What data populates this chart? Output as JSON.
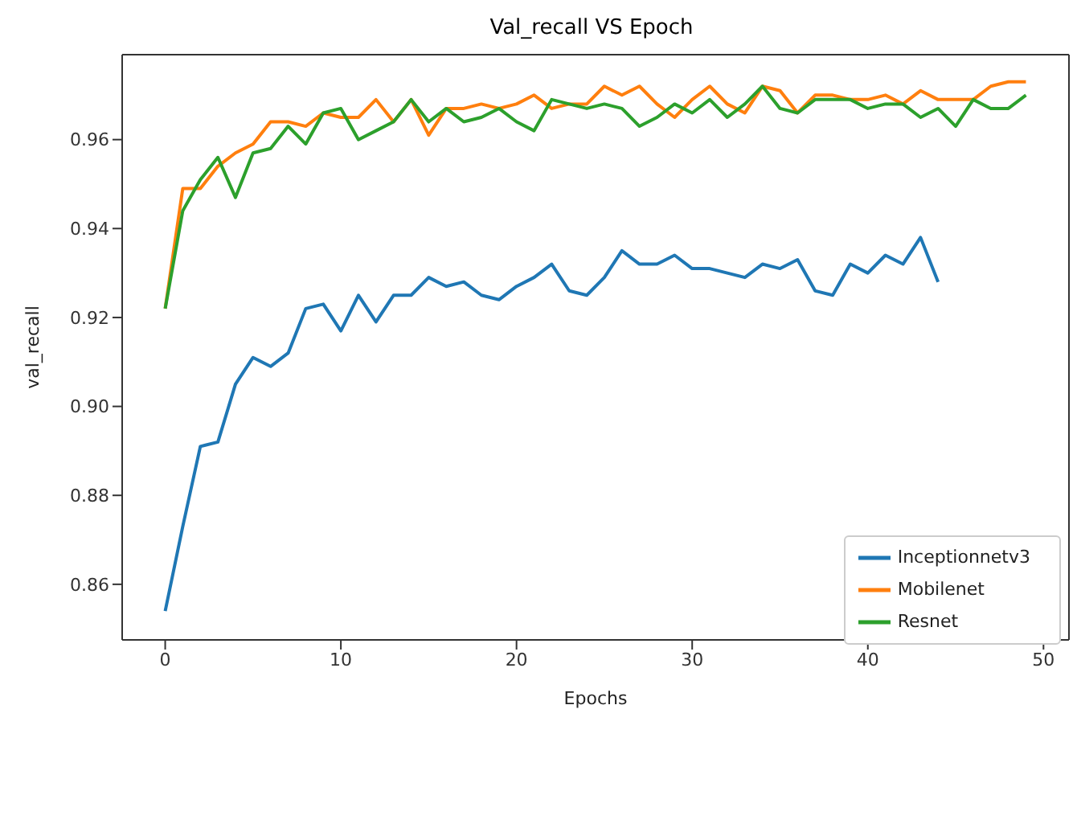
{
  "chart_data": {
    "type": "line",
    "title": "Val_recall VS Epoch",
    "xlabel": "Epochs",
    "ylabel": "val_recall",
    "x": [
      0,
      1,
      2,
      3,
      4,
      5,
      6,
      7,
      8,
      9,
      10,
      11,
      12,
      13,
      14,
      15,
      16,
      17,
      18,
      19,
      20,
      21,
      22,
      23,
      24,
      25,
      26,
      27,
      28,
      29,
      30,
      31,
      32,
      33,
      34,
      35,
      36,
      37,
      38,
      39,
      40,
      41,
      42,
      43,
      44,
      45,
      46,
      47,
      48,
      49
    ],
    "series": [
      {
        "name": "Inceptionnetv3",
        "color": "#1f77b4",
        "x": [
          0,
          1,
          2,
          3,
          4,
          5,
          6,
          7,
          8,
          9,
          10,
          11,
          12,
          13,
          14,
          15,
          16,
          17,
          18,
          19,
          20,
          21,
          22,
          23,
          24,
          25,
          26,
          27,
          28,
          29,
          30,
          31,
          32,
          33,
          34,
          35,
          36,
          37,
          38,
          39,
          40,
          41,
          42,
          43,
          44
        ],
        "values": [
          0.854,
          0.873,
          0.891,
          0.892,
          0.905,
          0.911,
          0.909,
          0.912,
          0.922,
          0.923,
          0.917,
          0.925,
          0.919,
          0.925,
          0.925,
          0.929,
          0.927,
          0.928,
          0.925,
          0.924,
          0.927,
          0.929,
          0.932,
          0.926,
          0.925,
          0.929,
          0.935,
          0.932,
          0.932,
          0.934,
          0.931,
          0.931,
          0.93,
          0.929,
          0.932,
          0.931,
          0.933,
          0.926,
          0.925,
          0.932,
          0.93,
          0.934,
          0.932,
          0.938,
          0.928
        ]
      },
      {
        "name": "Mobilenet",
        "color": "#ff7f0e",
        "values": [
          0.922,
          0.949,
          0.949,
          0.954,
          0.957,
          0.959,
          0.964,
          0.964,
          0.963,
          0.966,
          0.965,
          0.965,
          0.969,
          0.964,
          0.969,
          0.961,
          0.967,
          0.967,
          0.968,
          0.967,
          0.968,
          0.97,
          0.967,
          0.968,
          0.968,
          0.972,
          0.97,
          0.972,
          0.968,
          0.965,
          0.969,
          0.972,
          0.968,
          0.966,
          0.972,
          0.971,
          0.966,
          0.97,
          0.97,
          0.969,
          0.969,
          0.97,
          0.968,
          0.971,
          0.969,
          0.969,
          0.969,
          0.972,
          0.973,
          0.973
        ]
      },
      {
        "name": "Resnet",
        "color": "#2ca02c",
        "values": [
          0.922,
          0.944,
          0.951,
          0.956,
          0.947,
          0.957,
          0.958,
          0.963,
          0.959,
          0.966,
          0.967,
          0.96,
          0.962,
          0.964,
          0.969,
          0.964,
          0.967,
          0.964,
          0.965,
          0.967,
          0.964,
          0.962,
          0.969,
          0.968,
          0.967,
          0.968,
          0.967,
          0.963,
          0.965,
          0.968,
          0.966,
          0.969,
          0.965,
          0.968,
          0.972,
          0.967,
          0.966,
          0.969,
          0.969,
          0.969,
          0.967,
          0.968,
          0.968,
          0.965,
          0.967,
          0.963,
          0.969,
          0.967,
          0.967,
          0.97
        ]
      }
    ],
    "xlim": [
      -2.45,
      51.45
    ],
    "xticks": [
      0,
      10,
      20,
      30,
      40,
      50
    ],
    "ylim": [
      0.8475,
      0.9791
    ],
    "yticks": [
      {
        "value": 0.86,
        "label": "0.86"
      },
      {
        "value": 0.88,
        "label": "0.88"
      },
      {
        "value": 0.9,
        "label": "0.90"
      },
      {
        "value": 0.92,
        "label": "0.92"
      },
      {
        "value": 0.94,
        "label": "0.94"
      },
      {
        "value": 0.96,
        "label": "0.96"
      }
    ],
    "legend": "bottom right",
    "marker": "none",
    "line_style": "solid"
  }
}
